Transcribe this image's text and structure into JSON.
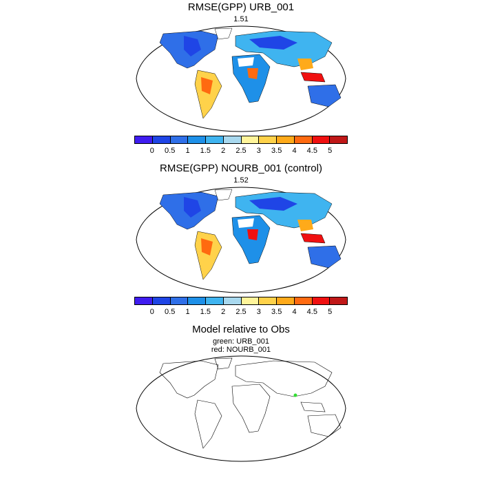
{
  "panel1": {
    "title": "RMSE(GPP) URB_001",
    "value": "1.51"
  },
  "panel2": {
    "title": "RMSE(GPP) NOURB_001 (control)",
    "value": "1.52"
  },
  "panel3": {
    "title": "Model relative to Obs",
    "line1": "green: URB_001",
    "line2": "red: NOURB_001"
  },
  "colorbar": {
    "labels": [
      "0",
      "0.5",
      "1",
      "1.5",
      "2",
      "2.5",
      "3",
      "3.5",
      "4",
      "4.5",
      "5"
    ],
    "colors": [
      "#3f1cf0",
      "#1f45e6",
      "#2f6fe8",
      "#1e90e8",
      "#3fb4f0",
      "#a8d8ee",
      "#fff49a",
      "#ffd24a",
      "#ffaa1a",
      "#ff6a10",
      "#f01010",
      "#c01818"
    ]
  }
}
